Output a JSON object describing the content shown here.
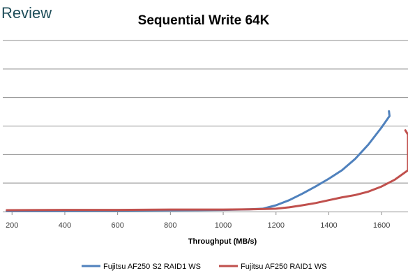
{
  "brand": {
    "text": "Review"
  },
  "chart_data": {
    "type": "line",
    "title": "Sequential Write 64K",
    "xlabel": "Throughput (MB/s)",
    "ylabel": "",
    "xlim": [
      165,
      1700
    ],
    "ylim": [
      0,
      6
    ],
    "x_ticks": [
      "200",
      "400",
      "600",
      "800",
      "1000",
      "1200",
      "1400",
      "1600"
    ],
    "grid": true,
    "legend_position": "bottom",
    "colors": {
      "s2": "#4f81bd",
      "raid1": "#c0504d"
    },
    "series": [
      {
        "name": "Fujitsu AF250 S2 RAID1 WS",
        "x": [
          180,
          300,
          500,
          700,
          900,
          1000,
          1100,
          1150,
          1200,
          1250,
          1300,
          1350,
          1400,
          1450,
          1500,
          1550,
          1600,
          1630,
          1628
        ],
        "y": [
          0.02,
          0.02,
          0.03,
          0.04,
          0.05,
          0.06,
          0.08,
          0.1,
          0.22,
          0.4,
          0.63,
          0.88,
          1.15,
          1.45,
          1.85,
          2.35,
          2.95,
          3.35,
          3.52
        ]
      },
      {
        "name": "Fujitsu AF250 RAID1 WS",
        "x": [
          180,
          400,
          600,
          800,
          1000,
          1100,
          1200,
          1250,
          1300,
          1350,
          1400,
          1450,
          1500,
          1550,
          1600,
          1650,
          1700,
          1700,
          1690
        ],
        "y": [
          0.05,
          0.06,
          0.06,
          0.07,
          0.07,
          0.08,
          0.1,
          0.15,
          0.22,
          0.3,
          0.4,
          0.5,
          0.58,
          0.7,
          0.88,
          1.12,
          1.45,
          2.7,
          2.85
        ]
      }
    ]
  }
}
